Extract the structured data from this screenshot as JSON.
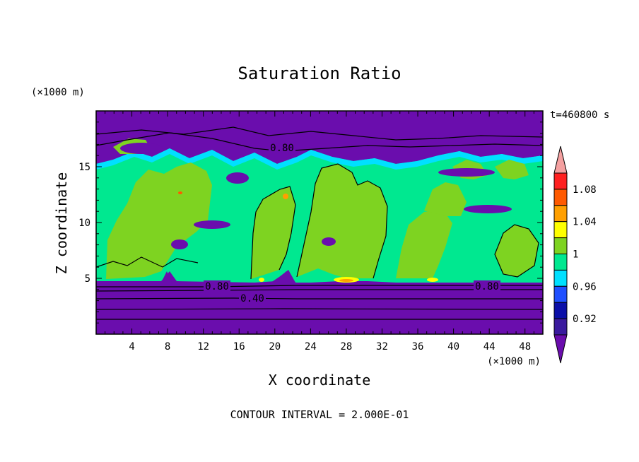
{
  "chart_data": {
    "type": "heatmap",
    "title": "Saturation Ratio",
    "xlabel": "X coordinate",
    "ylabel": "Z coordinate",
    "x_unit": "(×1000 m)",
    "y_unit": "(×1000 m)",
    "time_label": "t=460800 s",
    "footer": "CONTOUR INTERVAL = 2.000E-01",
    "xlim": [
      0,
      50
    ],
    "ylim": [
      0,
      20
    ],
    "x_ticks": [
      "4",
      "8",
      "12",
      "16",
      "20",
      "24",
      "28",
      "32",
      "36",
      "40",
      "44",
      "48"
    ],
    "y_ticks": [
      "5",
      "10",
      "15"
    ],
    "colorbar": {
      "labels": [
        "1.08",
        "1.04",
        "1",
        "0.96",
        "0.92"
      ],
      "levels": [
        0.9,
        0.92,
        0.94,
        0.96,
        0.98,
        1.0,
        1.02,
        1.04,
        1.06,
        1.08,
        1.1
      ],
      "colors": {
        "lt_0.90": "#6a0dad",
        "0.90-0.92": "#3a1a9e",
        "0.92-0.94": "#0b0fa8",
        "0.94-0.96": "#1f4fff",
        "0.96-0.98": "#00e0ff",
        "0.98-1.00": "#00e890",
        "1.00-1.02": "#7ed321",
        "1.02-1.04": "#ffff00",
        "1.04-1.06": "#ff9f00",
        "1.06-1.08": "#ff5a00",
        "1.08-1.10": "#ff2020",
        "gt_1.10": "#f4a0a0"
      }
    },
    "contour_labels": [
      {
        "text": "0.80",
        "x": 19.5,
        "z": 16.5
      },
      {
        "text": "0.80",
        "x": 13.4,
        "z": 4.4
      },
      {
        "text": "0.40",
        "x": 17.2,
        "z": 3.1
      },
      {
        "text": "0.80",
        "x": 43.0,
        "z": 4.4
      }
    ]
  }
}
